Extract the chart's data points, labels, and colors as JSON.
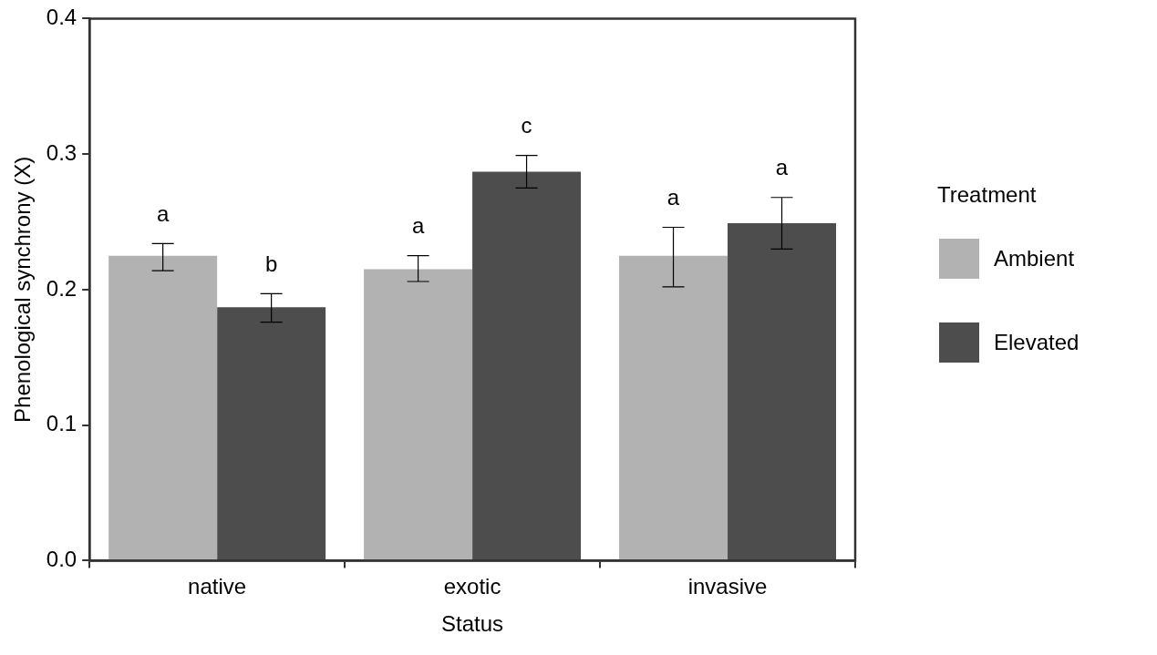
{
  "chart_data": {
    "type": "bar",
    "xlabel": "Status",
    "ylabel": "Phenological synchrony (X)",
    "legend_title": "Treatment",
    "categories": [
      "native",
      "exotic",
      "invasive"
    ],
    "series": [
      {
        "name": "Ambient",
        "color": "#b2b2b2",
        "values": [
          0.225,
          0.215,
          0.225
        ],
        "errors": [
          [
            0.214,
            0.234
          ],
          [
            0.206,
            0.225
          ],
          [
            0.202,
            0.246
          ]
        ]
      },
      {
        "name": "Elevated",
        "color": "#4d4d4d",
        "values": [
          0.187,
          0.287,
          0.249
        ],
        "errors": [
          [
            0.176,
            0.197
          ],
          [
            0.275,
            0.299
          ],
          [
            0.23,
            0.268
          ]
        ]
      }
    ],
    "ylim": [
      0,
      0.4
    ],
    "yticks": [
      {
        "value": 0,
        "label": "0.0"
      },
      0.1,
      0.2,
      0.3,
      0.4
    ],
    "grid": false,
    "legend": "right",
    "annotations": [
      "a",
      "b",
      "a",
      "c",
      "a",
      "a"
    ]
  }
}
